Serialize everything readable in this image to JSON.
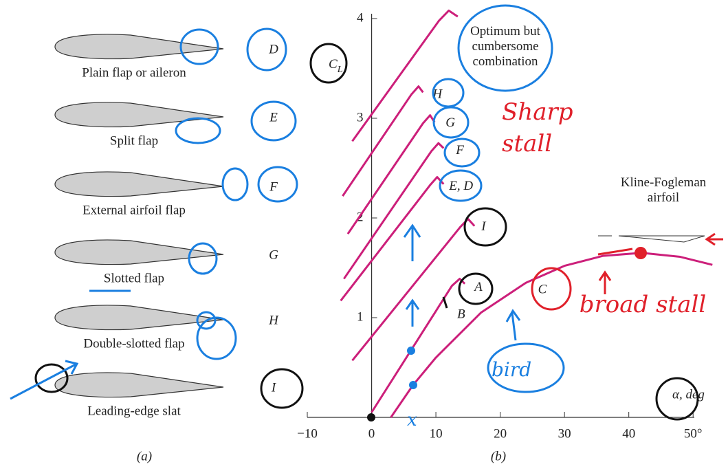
{
  "panel_a": {
    "label": "(a)",
    "items": [
      {
        "name": "Plain flap or aileron",
        "letter": "D"
      },
      {
        "name": "Split flap",
        "letter": "E"
      },
      {
        "name": "External airfoil flap",
        "letter": "F"
      },
      {
        "name": "Slotted flap",
        "letter": "G"
      },
      {
        "name": "Double-slotted flap",
        "letter": "H"
      },
      {
        "name": "Leading-edge slat",
        "letter": "I"
      }
    ]
  },
  "chart_data": {
    "type": "line",
    "label": "(b)",
    "ylabel": {
      "symbol": "C",
      "subscript": "L"
    },
    "xlabel": "α, deg",
    "xlim": [
      -10,
      55
    ],
    "ylim": [
      0,
      4.2
    ],
    "xticks": [
      {
        "value": -10,
        "label": "−10"
      },
      0,
      10,
      20,
      30,
      40,
      {
        "value": 50,
        "label": "50°"
      }
    ],
    "yticks": [
      1,
      2,
      3,
      4
    ],
    "color": "#cc1f7a",
    "series": [
      {
        "name": "Optimum but cumbersome combination",
        "x": [
          -3,
          10.5,
          12,
          13.4
        ],
        "values": [
          2.77,
          3.98,
          4.08,
          4.02
        ]
      },
      {
        "name": "H",
        "x": [
          -4.5,
          6.2,
          7.3,
          8
        ],
        "values": [
          2.22,
          3.24,
          3.32,
          3.26
        ]
      },
      {
        "name": "G",
        "x": [
          -3.7,
          8,
          9.1,
          9.8
        ],
        "values": [
          1.84,
          2.95,
          3.03,
          2.96
        ]
      },
      {
        "name": "F",
        "x": [
          -4.3,
          9.3,
          10.4,
          11.2
        ],
        "values": [
          1.39,
          2.67,
          2.75,
          2.7
        ]
      },
      {
        "name": "E, D",
        "x": [
          -4.8,
          9.1,
          10.2,
          11.2
        ],
        "values": [
          1.17,
          2.33,
          2.41,
          2.34
        ]
      },
      {
        "name": "I",
        "x": [
          -3,
          13.8,
          15,
          16
        ],
        "values": [
          0.57,
          1.91,
          1.99,
          1.92
        ]
      },
      {
        "name": "A",
        "x": [
          0,
          12.5,
          13.7,
          14.5
        ],
        "values": [
          0.05,
          1.32,
          1.39,
          1.34
        ]
      },
      {
        "name": "C",
        "x": [
          3,
          6.4,
          10,
          17,
          24,
          30,
          36,
          42,
          48,
          53
        ],
        "values": [
          0,
          0.32,
          0.6,
          1.05,
          1.35,
          1.52,
          1.62,
          1.65,
          1.61,
          1.53
        ]
      }
    ],
    "annotations": [
      "B",
      "Kline-Fogleman airfoil"
    ]
  },
  "handwriting": [
    "Sharp stall",
    "broad stall",
    "bird",
    "x"
  ]
}
